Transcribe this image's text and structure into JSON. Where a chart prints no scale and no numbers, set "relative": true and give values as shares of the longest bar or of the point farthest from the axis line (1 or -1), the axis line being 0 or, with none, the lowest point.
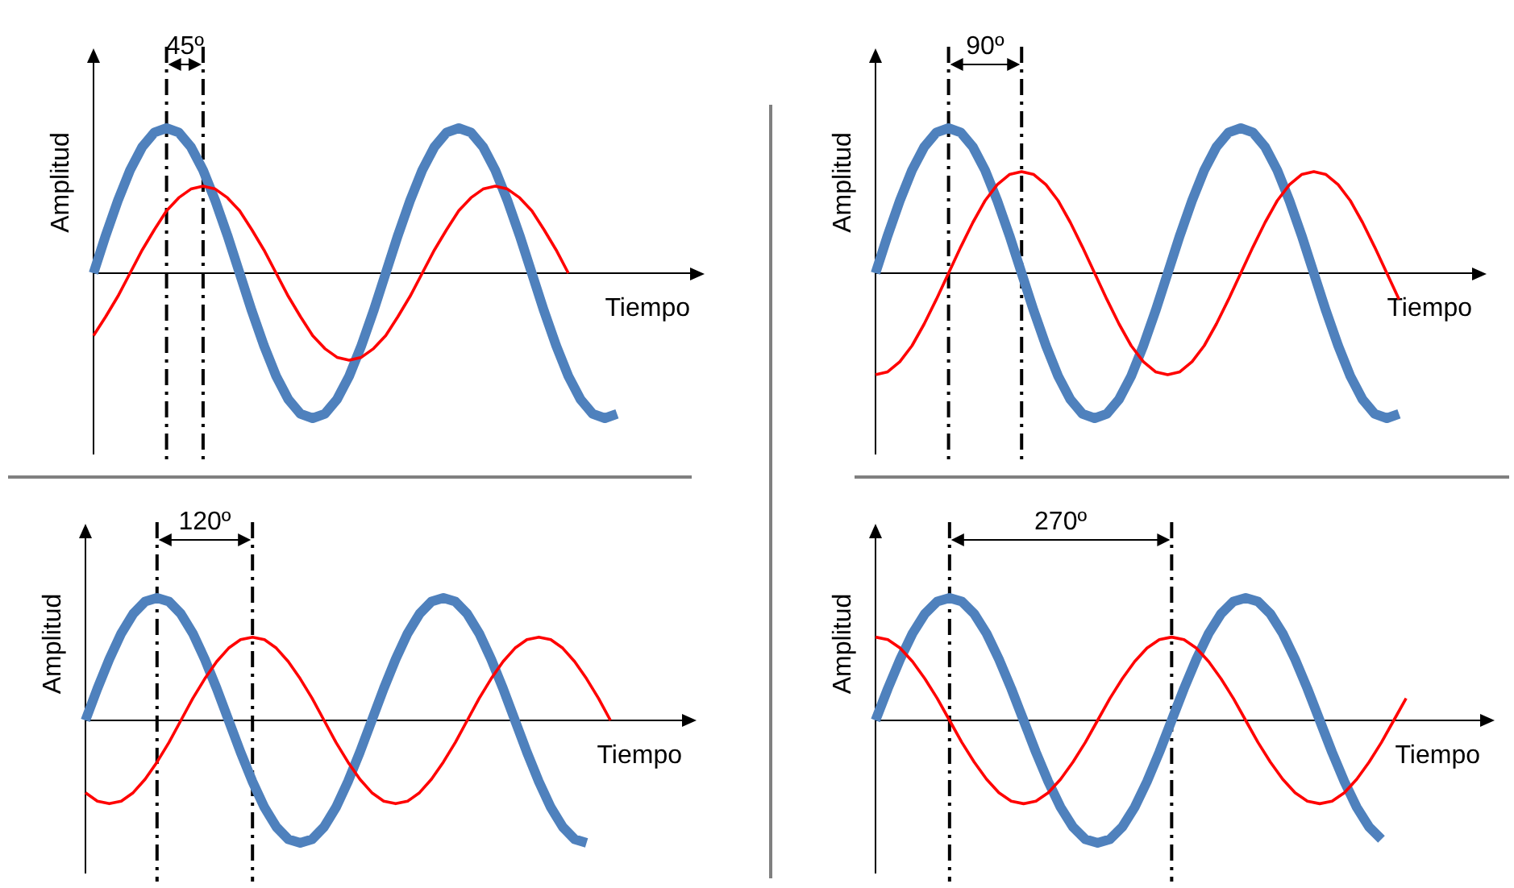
{
  "chart_data": [
    {
      "type": "line",
      "xlabel": "Tiempo",
      "ylabel": "Amplitud",
      "relative": true,
      "legend": false,
      "marker": "none",
      "line_style": "solid",
      "annotations": [
        "45º"
      ],
      "categories": [
        null,
        null,
        null,
        null,
        null,
        null,
        null,
        null,
        null,
        null,
        null,
        null,
        null,
        null,
        null,
        null,
        null,
        null,
        null,
        null,
        null,
        null,
        null,
        null,
        null,
        null,
        null,
        null,
        null,
        null,
        null,
        null,
        null,
        null,
        null,
        null,
        null,
        null,
        null,
        null,
        null,
        null,
        null,
        null,
        null,
        null,
        null,
        null,
        null,
        null
      ],
      "series": [
        {
          "color": "#4f81bd",
          "values": [
            0,
            0.26,
            0.5,
            0.71,
            0.87,
            0.97,
            1,
            0.97,
            0.87,
            0.71,
            0.5,
            0.26,
            0,
            -0.26,
            -0.5,
            -0.71,
            -0.87,
            -0.97,
            -1,
            -0.97,
            -0.87,
            -0.71,
            -0.5,
            -0.26,
            0,
            0.26,
            0.5,
            0.71,
            0.87,
            0.97,
            1,
            0.97,
            0.87,
            0.71,
            0.5,
            0.26,
            0,
            -0.26,
            -0.5,
            -0.71,
            -0.87,
            -0.97,
            -1,
            -0.97,
            null,
            null,
            null,
            null,
            null,
            null
          ]
        },
        {
          "color": "#ff0000",
          "values": [
            -0.43,
            -0.3,
            -0.16,
            0,
            0.16,
            0.3,
            0.43,
            0.52,
            0.58,
            0.6,
            0.58,
            0.52,
            0.43,
            0.3,
            0.16,
            0,
            -0.16,
            -0.3,
            -0.43,
            -0.52,
            -0.58,
            -0.6,
            -0.58,
            -0.52,
            -0.43,
            -0.3,
            -0.16,
            0,
            0.16,
            0.3,
            0.43,
            0.52,
            0.58,
            0.6,
            0.58,
            0.52,
            0.43,
            0.3,
            0.16,
            0,
            null,
            null,
            null,
            null,
            null,
            null,
            null,
            null,
            null,
            null
          ]
        }
      ]
    },
    {
      "type": "line",
      "xlabel": "Tiempo",
      "ylabel": "Amplitud",
      "relative": true,
      "legend": false,
      "marker": "none",
      "line_style": "solid",
      "annotations": [
        "90º"
      ],
      "categories": [
        null,
        null,
        null,
        null,
        null,
        null,
        null,
        null,
        null,
        null,
        null,
        null,
        null,
        null,
        null,
        null,
        null,
        null,
        null,
        null,
        null,
        null,
        null,
        null,
        null,
        null,
        null,
        null,
        null,
        null,
        null,
        null,
        null,
        null,
        null,
        null,
        null,
        null,
        null,
        null,
        null,
        null,
        null,
        null,
        null,
        null,
        null,
        null,
        null,
        null
      ],
      "series": [
        {
          "color": "#4f81bd",
          "values": [
            0,
            0.26,
            0.5,
            0.71,
            0.87,
            0.97,
            1,
            0.97,
            0.87,
            0.71,
            0.5,
            0.26,
            0,
            -0.26,
            -0.5,
            -0.71,
            -0.87,
            -0.97,
            -1,
            -0.97,
            -0.87,
            -0.71,
            -0.5,
            -0.26,
            0,
            0.26,
            0.5,
            0.71,
            0.87,
            0.97,
            1,
            0.97,
            0.87,
            0.71,
            0.5,
            0.26,
            0,
            -0.26,
            -0.5,
            -0.71,
            -0.87,
            -0.97,
            -1,
            -0.97,
            null,
            null,
            null,
            null,
            null,
            null
          ]
        },
        {
          "color": "#ff0000",
          "values": [
            -0.7,
            -0.68,
            -0.61,
            -0.5,
            -0.35,
            -0.18,
            0,
            0.18,
            0.35,
            0.5,
            0.61,
            0.68,
            0.7,
            0.68,
            0.61,
            0.5,
            0.35,
            0.18,
            0,
            -0.18,
            -0.35,
            -0.5,
            -0.61,
            -0.68,
            -0.7,
            -0.68,
            -0.61,
            -0.5,
            -0.35,
            -0.18,
            0,
            0.18,
            0.35,
            0.5,
            0.61,
            0.68,
            0.7,
            0.68,
            0.61,
            0.5,
            0.35,
            0.18,
            0,
            -0.18,
            null,
            null,
            null,
            null,
            null,
            null
          ]
        }
      ]
    },
    {
      "type": "line",
      "xlabel": "Tiempo",
      "ylabel": "Amplitud",
      "relative": true,
      "legend": false,
      "marker": "none",
      "line_style": "solid",
      "annotations": [
        "120º"
      ],
      "categories": [
        null,
        null,
        null,
        null,
        null,
        null,
        null,
        null,
        null,
        null,
        null,
        null,
        null,
        null,
        null,
        null,
        null,
        null,
        null,
        null,
        null,
        null,
        null,
        null,
        null,
        null,
        null,
        null,
        null,
        null,
        null,
        null,
        null,
        null,
        null,
        null,
        null,
        null,
        null,
        null,
        null,
        null,
        null,
        null,
        null,
        null,
        null,
        null,
        null,
        null,
        null
      ],
      "series": [
        {
          "color": "#4f81bd",
          "values": [
            0,
            0.26,
            0.5,
            0.71,
            0.87,
            0.97,
            1,
            0.97,
            0.87,
            0.71,
            0.5,
            0.26,
            0,
            -0.26,
            -0.5,
            -0.71,
            -0.87,
            -0.97,
            -1,
            -0.97,
            -0.87,
            -0.71,
            -0.5,
            -0.26,
            0,
            0.26,
            0.5,
            0.71,
            0.87,
            0.97,
            1,
            0.97,
            0.87,
            0.71,
            0.5,
            0.26,
            0,
            -0.26,
            -0.5,
            -0.71,
            -0.87,
            -0.97,
            -1,
            null,
            null,
            null,
            null,
            null,
            null,
            null,
            null
          ]
        },
        {
          "color": "#ff0000",
          "values": [
            -0.59,
            -0.66,
            -0.68,
            -0.66,
            -0.59,
            -0.48,
            -0.34,
            -0.18,
            0,
            0.18,
            0.34,
            0.48,
            0.59,
            0.66,
            0.68,
            0.66,
            0.59,
            0.48,
            0.34,
            0.18,
            0,
            -0.18,
            -0.34,
            -0.48,
            -0.59,
            -0.66,
            -0.68,
            -0.66,
            -0.59,
            -0.48,
            -0.34,
            -0.18,
            0,
            0.18,
            0.34,
            0.48,
            0.59,
            0.66,
            0.68,
            0.66,
            0.59,
            0.48,
            0.34,
            0.18,
            0,
            null,
            null,
            null,
            null,
            null,
            null
          ]
        }
      ]
    },
    {
      "type": "line",
      "xlabel": "Tiempo",
      "ylabel": "Amplitud",
      "relative": true,
      "legend": false,
      "marker": "none",
      "line_style": "solid",
      "annotations": [
        "270º"
      ],
      "categories": [
        null,
        null,
        null,
        null,
        null,
        null,
        null,
        null,
        null,
        null,
        null,
        null,
        null,
        null,
        null,
        null,
        null,
        null,
        null,
        null,
        null,
        null,
        null,
        null,
        null,
        null,
        null,
        null,
        null,
        null,
        null,
        null,
        null,
        null,
        null,
        null,
        null,
        null,
        null,
        null,
        null,
        null,
        null,
        null,
        null,
        null,
        null,
        null,
        null,
        null
      ],
      "series": [
        {
          "color": "#4f81bd",
          "values": [
            0,
            0.26,
            0.5,
            0.71,
            0.87,
            0.97,
            1,
            0.97,
            0.87,
            0.71,
            0.5,
            0.26,
            0,
            -0.26,
            -0.5,
            -0.71,
            -0.87,
            -0.97,
            -1,
            -0.97,
            -0.87,
            -0.71,
            -0.5,
            -0.26,
            0,
            0.26,
            0.5,
            0.71,
            0.87,
            0.97,
            1,
            0.97,
            0.87,
            0.71,
            0.5,
            0.26,
            0,
            -0.26,
            -0.5,
            -0.71,
            -0.87,
            -0.97,
            null,
            null,
            null,
            null,
            null,
            null,
            null,
            null
          ]
        },
        {
          "color": "#ff0000",
          "values": [
            0.68,
            0.66,
            0.59,
            0.48,
            0.34,
            0.18,
            0,
            -0.18,
            -0.34,
            -0.48,
            -0.59,
            -0.66,
            -0.68,
            -0.66,
            -0.59,
            -0.48,
            -0.34,
            -0.18,
            0,
            0.18,
            0.34,
            0.48,
            0.59,
            0.66,
            0.68,
            0.66,
            0.59,
            0.48,
            0.34,
            0.18,
            0,
            -0.18,
            -0.34,
            -0.48,
            -0.59,
            -0.66,
            -0.68,
            -0.66,
            -0.59,
            -0.48,
            -0.34,
            -0.18,
            0,
            0.18,
            null,
            null,
            null,
            null,
            null,
            null
          ]
        }
      ]
    }
  ]
}
